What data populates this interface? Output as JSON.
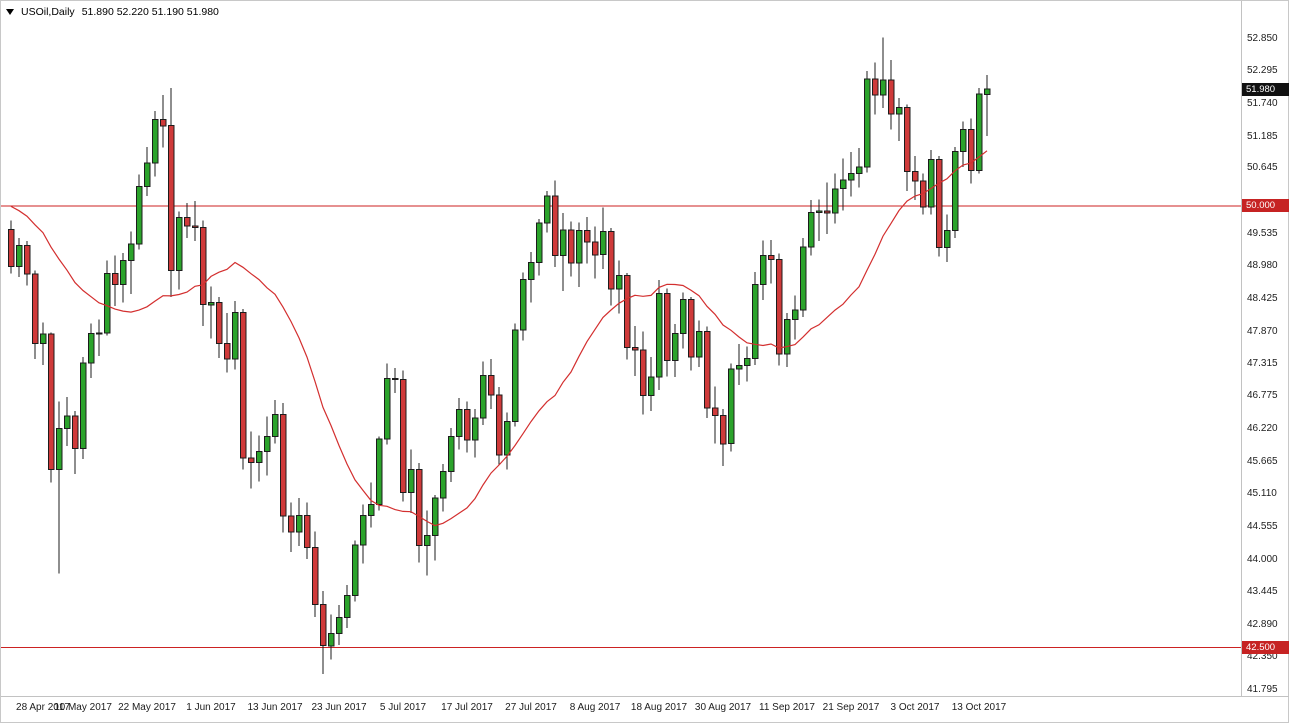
{
  "info_bar": {
    "symbol_period": "USOil,Daily",
    "ohlc_text": "51.890 52.220 51.190 51.980"
  },
  "colors": {
    "background": "#ffffff",
    "bull": "#2ba32b",
    "bear": "#cf3a3a",
    "outline": "#1c1c1c",
    "ma_line": "#d32f2f",
    "hline": "#cc2222",
    "hline_tag_bg": "#c62323",
    "current_tag_bg": "#111111",
    "axis_text": "#1d1d1d"
  },
  "chart_data": {
    "type": "candlestick",
    "title": "USOil Daily candlestick chart",
    "symbol": "USOil",
    "timeframe": "Daily",
    "current": {
      "open": "51.890",
      "high": "52.220",
      "low": "51.190",
      "close": "51.980"
    },
    "price_axis": {
      "min": 41.795,
      "max": 52.85,
      "labels": [
        "52.850",
        "52.295",
        "51.740",
        "51.185",
        "50.645",
        "49.535",
        "48.980",
        "48.425",
        "47.870",
        "47.315",
        "46.775",
        "46.220",
        "45.665",
        "45.110",
        "44.555",
        "44.000",
        "43.445",
        "42.890",
        "42.350",
        "41.795"
      ],
      "current_price_tag": "51.980",
      "hline_tags": [
        "50.000",
        "42.500"
      ]
    },
    "hlines": [
      50.0,
      42.5
    ],
    "time_axis": {
      "labels": [
        {
          "index": 1,
          "text": "28 Apr 2017"
        },
        {
          "index": 9,
          "text": "10 May 2017"
        },
        {
          "index": 17,
          "text": "22 May 2017"
        },
        {
          "index": 25,
          "text": "1 Jun 2017"
        },
        {
          "index": 33,
          "text": "13 Jun 2017"
        },
        {
          "index": 41,
          "text": "23 Jun 2017"
        },
        {
          "index": 49,
          "text": "5 Jul 2017"
        },
        {
          "index": 57,
          "text": "17 Jul 2017"
        },
        {
          "index": 65,
          "text": "27 Jul 2017"
        },
        {
          "index": 73,
          "text": "8 Aug 2017"
        },
        {
          "index": 81,
          "text": "18 Aug 2017"
        },
        {
          "index": 89,
          "text": "30 Aug 2017"
        },
        {
          "index": 97,
          "text": "11 Sep 2017"
        },
        {
          "index": 105,
          "text": "21 Sep 2017"
        },
        {
          "index": 113,
          "text": "3 Oct 2017"
        },
        {
          "index": 121,
          "text": "13 Oct 2017"
        }
      ]
    },
    "ma": {
      "type": "sma",
      "period": 20,
      "pre_closes": [
        50.8,
        50.7,
        50.6,
        50.5,
        50.4,
        50.3,
        50.2,
        50.1,
        50.0,
        49.95,
        49.9,
        49.85,
        49.8,
        49.75,
        49.7,
        49.65,
        49.6,
        49.55,
        49.5
      ]
    },
    "candles": [
      [
        49.6,
        49.75,
        48.85,
        48.97
      ],
      [
        48.97,
        49.45,
        48.79,
        49.33
      ],
      [
        49.33,
        49.4,
        48.65,
        48.84
      ],
      [
        48.84,
        48.9,
        47.4,
        47.66
      ],
      [
        47.66,
        48.02,
        47.3,
        47.82
      ],
      [
        47.82,
        47.85,
        45.3,
        45.52
      ],
      [
        45.52,
        46.68,
        43.76,
        46.22
      ],
      [
        46.22,
        46.75,
        45.92,
        46.43
      ],
      [
        46.43,
        46.52,
        45.45,
        45.88
      ],
      [
        45.88,
        47.43,
        45.7,
        47.33
      ],
      [
        47.33,
        48.0,
        47.08,
        47.83
      ],
      [
        47.83,
        48.07,
        47.45,
        47.84
      ],
      [
        47.84,
        49.07,
        47.8,
        48.85
      ],
      [
        48.85,
        49.16,
        48.3,
        48.66
      ],
      [
        48.66,
        49.2,
        48.36,
        49.07
      ],
      [
        49.07,
        49.56,
        48.5,
        49.35
      ],
      [
        49.35,
        50.53,
        49.26,
        50.33
      ],
      [
        50.33,
        51.0,
        50.17,
        50.73
      ],
      [
        50.73,
        51.61,
        50.5,
        51.47
      ],
      [
        51.47,
        51.88,
        50.99,
        51.36
      ],
      [
        51.36,
        52.0,
        48.45,
        48.9
      ],
      [
        48.9,
        49.9,
        48.58,
        49.8
      ],
      [
        49.8,
        50.05,
        49.45,
        49.66
      ],
      [
        49.66,
        50.08,
        49.4,
        49.63
      ],
      [
        49.63,
        49.75,
        47.96,
        48.32
      ],
      [
        48.32,
        48.63,
        47.75,
        48.36
      ],
      [
        48.36,
        48.45,
        47.42,
        47.66
      ],
      [
        47.66,
        48.18,
        47.17,
        47.4
      ],
      [
        47.4,
        48.38,
        47.22,
        48.19
      ],
      [
        48.19,
        48.25,
        45.52,
        45.72
      ],
      [
        45.72,
        46.17,
        45.2,
        45.64
      ],
      [
        45.64,
        46.1,
        45.32,
        45.83
      ],
      [
        45.83,
        46.42,
        45.42,
        46.08
      ],
      [
        46.08,
        46.7,
        45.96,
        46.46
      ],
      [
        46.46,
        46.65,
        44.45,
        44.73
      ],
      [
        44.73,
        44.96,
        44.12,
        44.46
      ],
      [
        44.46,
        45.04,
        44.22,
        44.74
      ],
      [
        44.74,
        44.96,
        44.0,
        44.2
      ],
      [
        44.2,
        44.47,
        43.02,
        43.23
      ],
      [
        43.23,
        43.46,
        42.05,
        42.53
      ],
      [
        42.53,
        43.06,
        42.3,
        42.74
      ],
      [
        42.74,
        43.22,
        42.54,
        43.01
      ],
      [
        43.01,
        43.56,
        42.83,
        43.38
      ],
      [
        43.38,
        44.32,
        43.28,
        44.24
      ],
      [
        44.24,
        44.93,
        43.93,
        44.74
      ],
      [
        44.74,
        45.3,
        44.54,
        44.93
      ],
      [
        44.93,
        46.08,
        44.83,
        46.04
      ],
      [
        46.04,
        47.32,
        45.95,
        47.07
      ],
      [
        47.07,
        47.25,
        46.82,
        47.05
      ],
      [
        47.05,
        47.2,
        44.98,
        45.13
      ],
      [
        45.13,
        45.86,
        44.78,
        45.52
      ],
      [
        45.52,
        45.63,
        43.94,
        44.23
      ],
      [
        44.23,
        44.83,
        43.72,
        44.4
      ],
      [
        44.4,
        45.09,
        43.98,
        45.04
      ],
      [
        45.04,
        45.62,
        44.81,
        45.49
      ],
      [
        45.49,
        46.23,
        45.31,
        46.08
      ],
      [
        46.08,
        46.74,
        45.86,
        46.54
      ],
      [
        46.54,
        46.68,
        45.81,
        46.02
      ],
      [
        46.02,
        46.55,
        45.73,
        46.4
      ],
      [
        46.4,
        47.36,
        46.28,
        47.12
      ],
      [
        47.12,
        47.4,
        46.55,
        46.79
      ],
      [
        46.79,
        46.92,
        45.6,
        45.77
      ],
      [
        45.77,
        46.49,
        45.52,
        46.34
      ],
      [
        46.34,
        48.0,
        46.25,
        47.89
      ],
      [
        47.89,
        48.87,
        47.71,
        48.75
      ],
      [
        48.75,
        49.22,
        48.36,
        49.04
      ],
      [
        49.04,
        49.78,
        48.82,
        49.71
      ],
      [
        49.71,
        50.25,
        49.55,
        50.17
      ],
      [
        50.17,
        50.43,
        48.96,
        49.16
      ],
      [
        49.16,
        49.88,
        48.55,
        49.59
      ],
      [
        49.59,
        49.73,
        48.8,
        49.03
      ],
      [
        49.03,
        49.72,
        48.62,
        49.58
      ],
      [
        49.58,
        49.81,
        49.02,
        49.39
      ],
      [
        49.39,
        49.65,
        48.77,
        49.17
      ],
      [
        49.17,
        49.97,
        48.93,
        49.56
      ],
      [
        49.56,
        49.62,
        48.31,
        48.59
      ],
      [
        48.59,
        49.07,
        48.17,
        48.82
      ],
      [
        48.82,
        48.86,
        47.39,
        47.59
      ],
      [
        47.59,
        47.96,
        47.11,
        47.55
      ],
      [
        47.55,
        47.87,
        46.46,
        46.78
      ],
      [
        46.78,
        47.43,
        46.52,
        47.09
      ],
      [
        47.09,
        48.74,
        46.87,
        48.51
      ],
      [
        48.51,
        48.6,
        47.1,
        47.37
      ],
      [
        47.37,
        47.99,
        47.09,
        47.83
      ],
      [
        47.83,
        48.53,
        47.58,
        48.41
      ],
      [
        48.41,
        48.45,
        47.2,
        47.43
      ],
      [
        47.43,
        48.05,
        47.26,
        47.87
      ],
      [
        47.87,
        47.95,
        46.4,
        46.57
      ],
      [
        46.57,
        46.93,
        45.96,
        46.44
      ],
      [
        46.44,
        46.55,
        45.58,
        45.96
      ],
      [
        45.96,
        47.32,
        45.83,
        47.23
      ],
      [
        47.23,
        47.65,
        46.96,
        47.29
      ],
      [
        47.29,
        47.61,
        47.02,
        47.41
      ],
      [
        47.41,
        48.88,
        47.3,
        48.66
      ],
      [
        48.66,
        49.41,
        48.4,
        49.16
      ],
      [
        49.16,
        49.42,
        48.68,
        49.09
      ],
      [
        49.09,
        49.19,
        47.29,
        47.48
      ],
      [
        47.48,
        48.18,
        47.26,
        48.07
      ],
      [
        48.07,
        48.48,
        47.73,
        48.23
      ],
      [
        48.23,
        49.45,
        48.11,
        49.3
      ],
      [
        49.3,
        50.1,
        49.16,
        49.89
      ],
      [
        49.89,
        50.11,
        49.4,
        49.91
      ],
      [
        49.91,
        50.4,
        49.52,
        49.88
      ],
      [
        49.88,
        50.55,
        49.7,
        50.29
      ],
      [
        50.29,
        50.8,
        49.92,
        50.44
      ],
      [
        50.44,
        50.91,
        50.16,
        50.55
      ],
      [
        50.55,
        50.98,
        50.31,
        50.66
      ],
      [
        50.66,
        52.29,
        50.57,
        52.15
      ],
      [
        52.15,
        52.43,
        51.55,
        51.88
      ],
      [
        51.88,
        52.86,
        51.66,
        52.14
      ],
      [
        52.14,
        52.48,
        51.3,
        51.56
      ],
      [
        51.56,
        51.83,
        51.1,
        51.67
      ],
      [
        51.67,
        51.72,
        50.25,
        50.58
      ],
      [
        50.58,
        50.85,
        50.1,
        50.42
      ],
      [
        50.42,
        50.55,
        49.85,
        49.98
      ],
      [
        49.98,
        50.95,
        49.85,
        50.79
      ],
      [
        50.79,
        50.85,
        49.14,
        49.29
      ],
      [
        49.29,
        49.85,
        49.05,
        49.58
      ],
      [
        49.58,
        51.0,
        49.45,
        50.92
      ],
      [
        50.92,
        51.43,
        50.66,
        51.3
      ],
      [
        51.3,
        51.48,
        50.38,
        50.6
      ],
      [
        50.6,
        52.0,
        50.55,
        51.9
      ],
      [
        51.89,
        52.22,
        51.19,
        51.98
      ]
    ]
  }
}
